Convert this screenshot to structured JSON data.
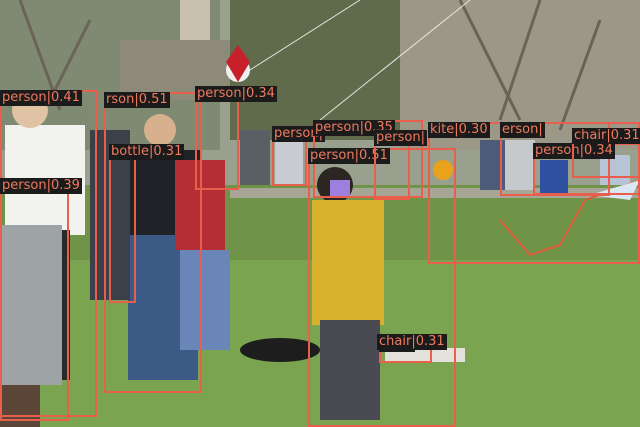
{
  "image": {
    "description_free": true,
    "box_color": "#e8604c",
    "label_bg": "#1b1b1b",
    "label_color": "#f07a5f"
  },
  "detections": [
    {
      "id": "d1",
      "cls": "person",
      "score": "0.41"
    },
    {
      "id": "d2",
      "cls": "person",
      "score": "0.51",
      "shown_prefix": "rson"
    },
    {
      "id": "d3",
      "cls": "person",
      "score": "0.34"
    },
    {
      "id": "d4",
      "cls": "bottle",
      "score": "0.31"
    },
    {
      "id": "d5",
      "cls": "person",
      "score": "0.39"
    },
    {
      "id": "d6",
      "cls": "person",
      "score": "0.35"
    },
    {
      "id": "d7",
      "cls": "person",
      "score": "0.51"
    },
    {
      "id": "d8",
      "cls": "person",
      "score": ""
    },
    {
      "id": "d9",
      "cls": "kite",
      "score": "0.30"
    },
    {
      "id": "d10",
      "cls": "person",
      "score": "",
      "shown_prefix": "erson"
    },
    {
      "id": "d11",
      "cls": "person",
      "score": "0.34"
    },
    {
      "id": "d12",
      "cls": "person",
      "score": ""
    },
    {
      "id": "d13",
      "cls": "chair",
      "score": "0.31"
    }
  ]
}
